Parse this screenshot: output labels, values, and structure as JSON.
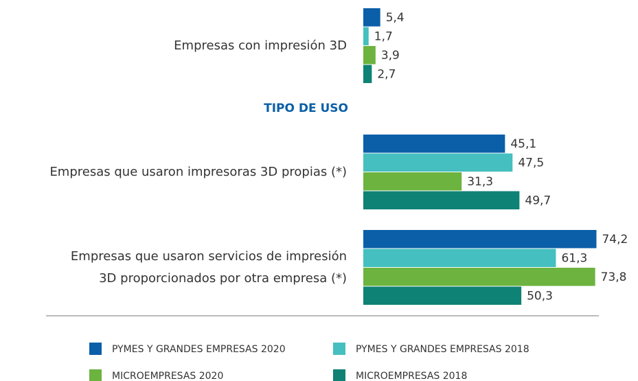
{
  "chart_data": {
    "type": "bar",
    "orientation": "horizontal",
    "annotations": [
      "TIPO DE USO"
    ],
    "categories": [
      "Empresas con impresión 3D",
      "Empresas que usaron impresoras 3D propias (*)",
      "Empresas que usaron servicios de impresión\n3D proporcionados por otra empresa (*)"
    ],
    "series": [
      {
        "name": "PYMES Y GRANDES EMPRESAS 2020",
        "color": "#0a5fa8",
        "values": [
          5.4,
          45.1,
          74.2
        ],
        "value_labels": [
          "5,4",
          "45,1",
          "74,2"
        ]
      },
      {
        "name": "PYMES Y GRANDES EMPRESAS 2018",
        "color": "#45bfbf",
        "values": [
          1.7,
          47.5,
          61.3
        ],
        "value_labels": [
          "1,7",
          "47,5",
          "61,3"
        ]
      },
      {
        "name": "MICROEMPRESAS 2020",
        "color": "#6cb33f",
        "values": [
          3.9,
          31.3,
          73.8
        ],
        "value_labels": [
          "3,9",
          "31,3",
          "73,8"
        ]
      },
      {
        "name": "MICROEMPRESAS 2018",
        "color": "#0e8275",
        "values": [
          2.7,
          49.7,
          50.3
        ],
        "value_labels": [
          "2,7",
          "49,7",
          "50,3"
        ]
      }
    ],
    "xlim": [
      0,
      80
    ]
  }
}
